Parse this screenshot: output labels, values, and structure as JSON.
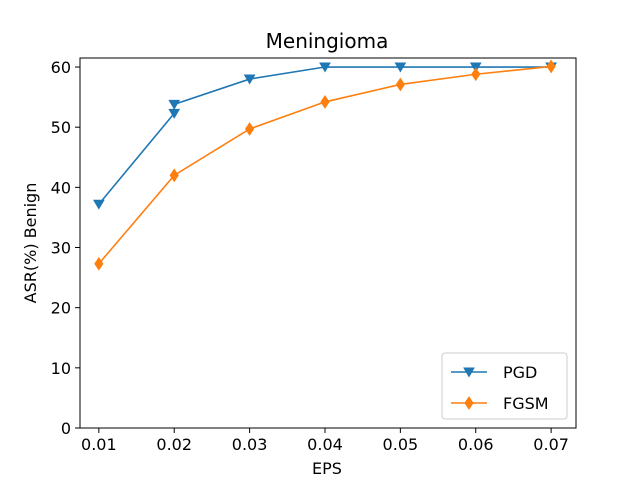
{
  "chart_data": {
    "type": "line",
    "title": "Meningioma",
    "xlabel": "EPS",
    "ylabel": "ASR(%) Benign",
    "x": [
      0.01,
      0.02,
      0.03,
      0.04,
      0.05,
      0.06,
      0.07
    ],
    "x_tick_labels": [
      "0.01",
      "0.02",
      "0.03",
      "0.04",
      "0.05",
      "0.06",
      "0.07"
    ],
    "y_ticks": [
      0,
      10,
      20,
      30,
      40,
      50,
      60
    ],
    "xlim": [
      0.0075,
      0.0733
    ],
    "ylim": [
      0,
      61.5
    ],
    "grid": false,
    "legend_position": "lower-right",
    "series": [
      {
        "name": "PGD",
        "color": "#1f77b4",
        "marker": "triangle-down",
        "values": [
          37.2,
          52.3,
          58.0,
          60.0,
          60.0,
          60.0,
          60.0
        ],
        "extra_points": [
          {
            "x": 0.02,
            "y": 53.8
          }
        ]
      },
      {
        "name": "FGSM",
        "color": "#ff7f0e",
        "marker": "diamond",
        "values": [
          27.3,
          42.0,
          49.7,
          54.2,
          57.1,
          58.8,
          60.1
        ]
      }
    ]
  }
}
